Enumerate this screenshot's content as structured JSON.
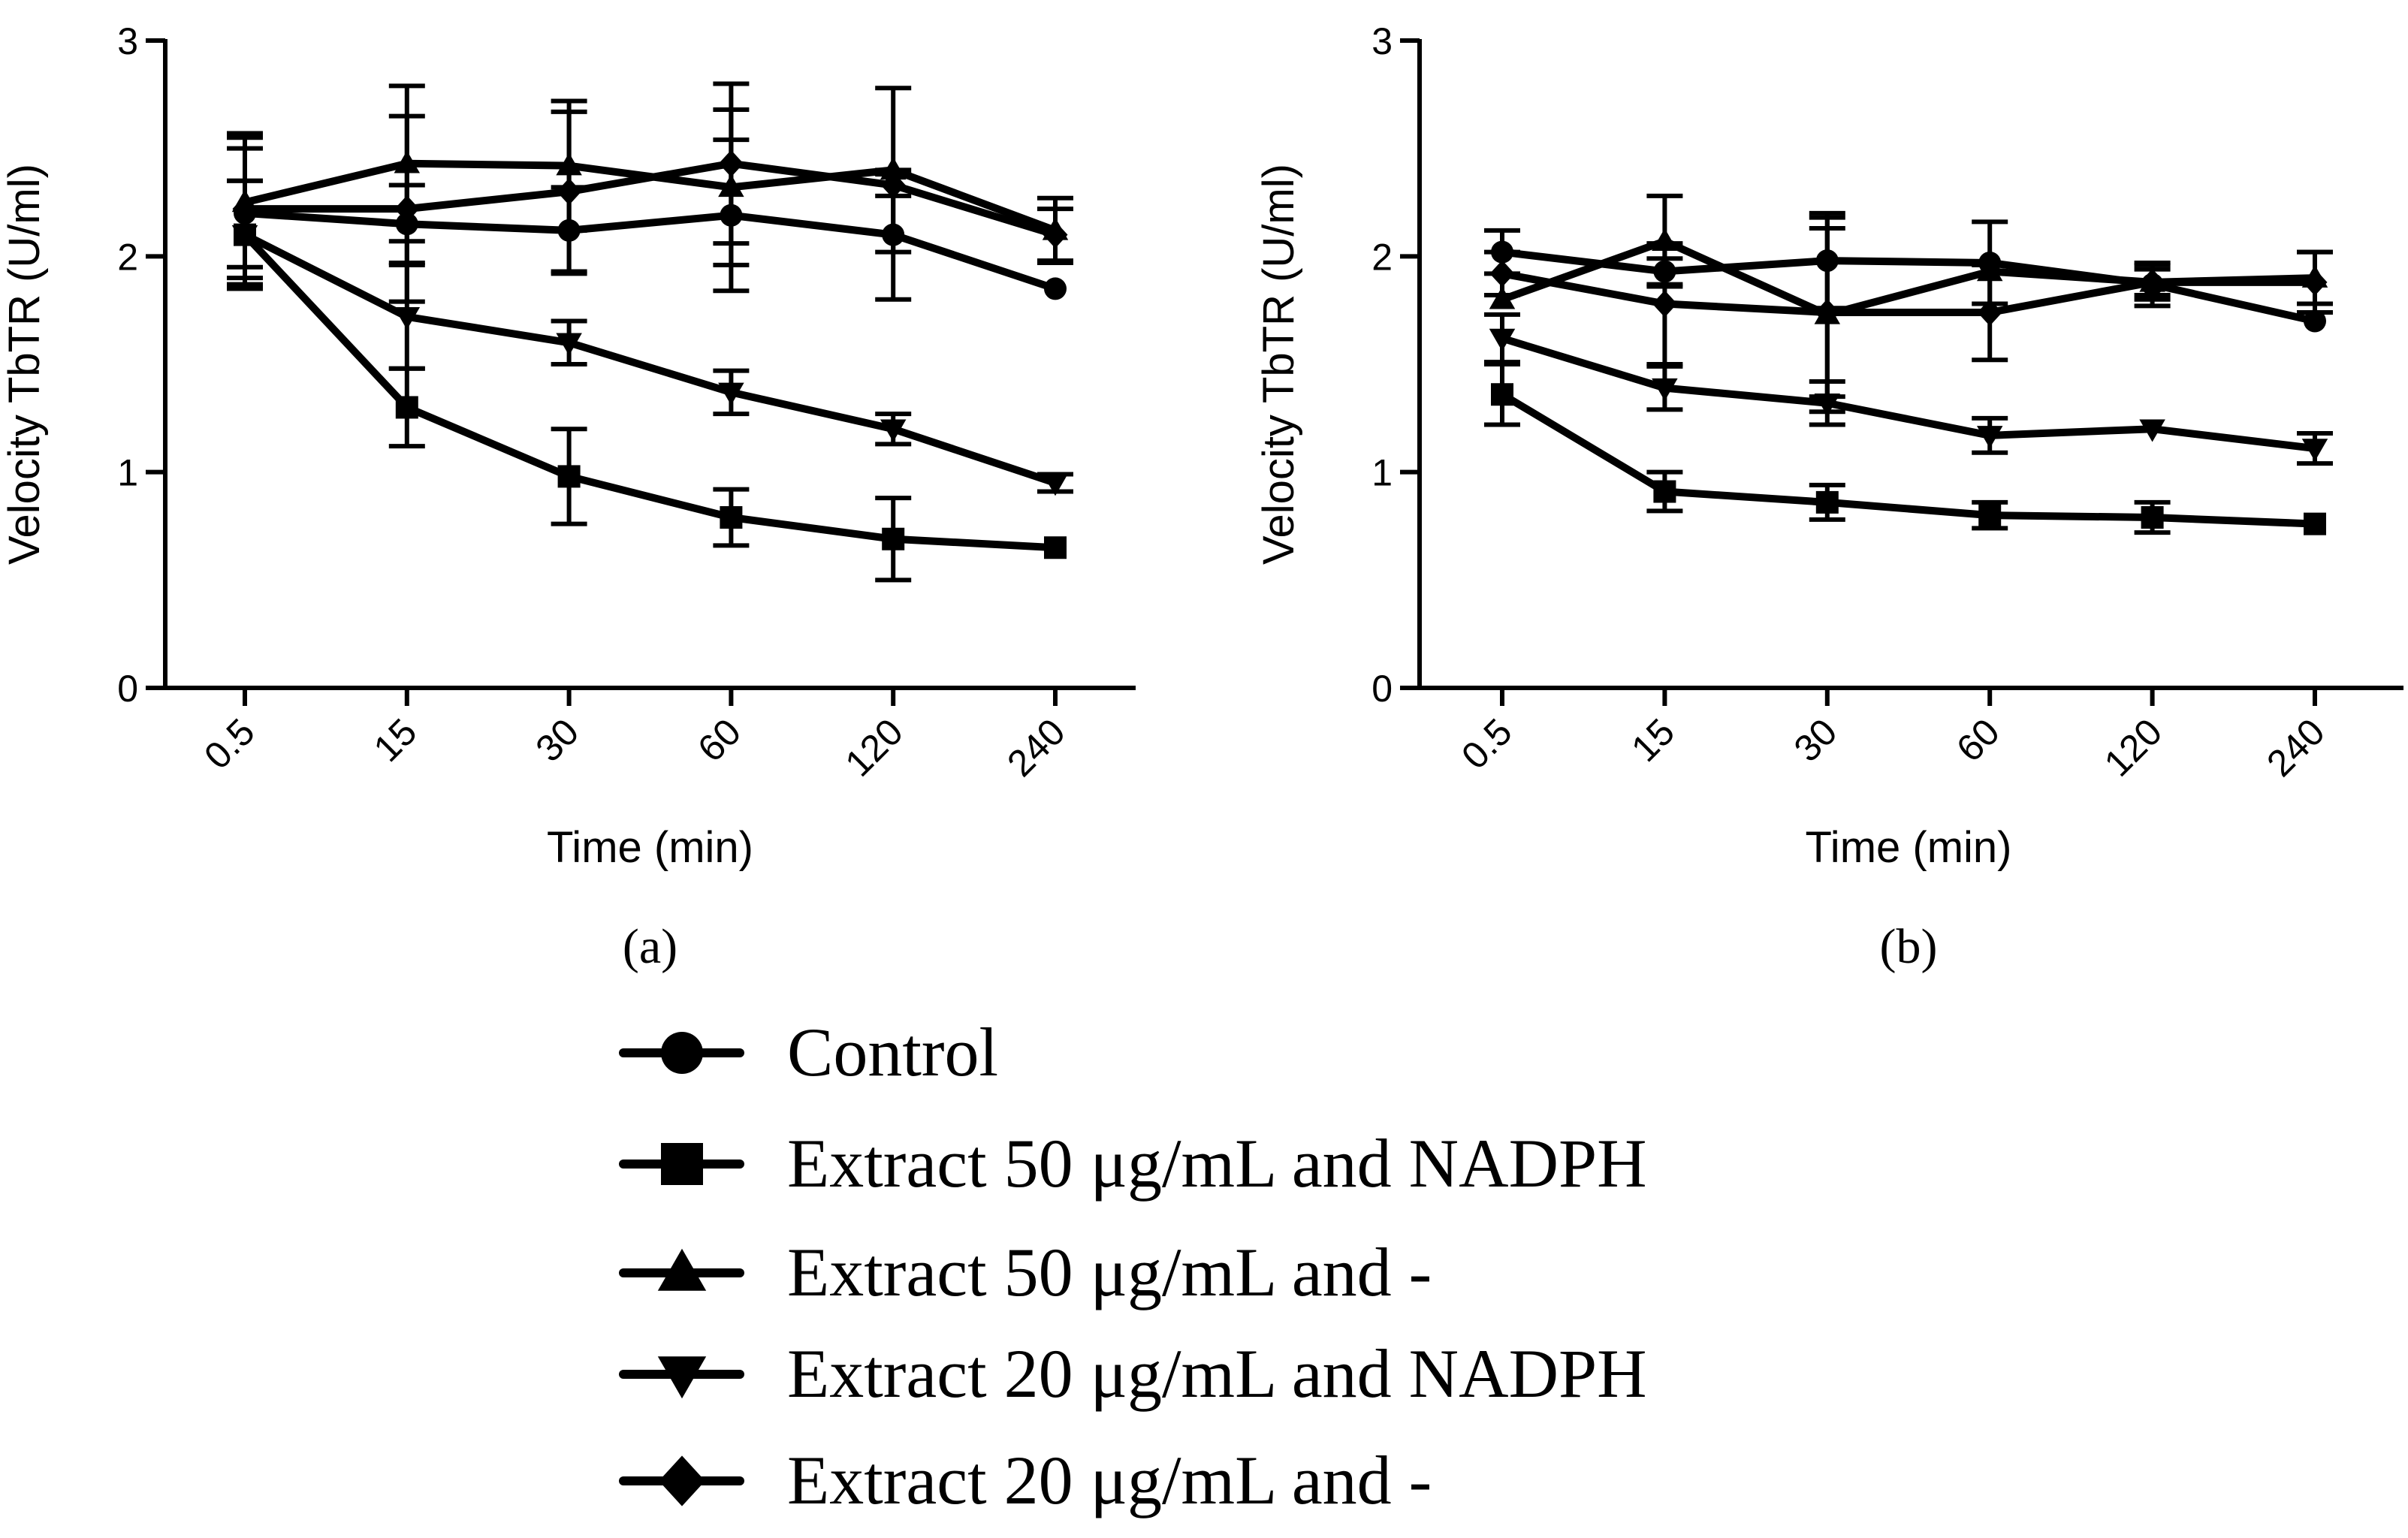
{
  "chart_data": [
    {
      "type": "line",
      "panel_label": "(a)",
      "xlabel": "Time (min)",
      "ylabel": "Velocity TbTR (U/ml)",
      "categories": [
        "0.5",
        "15",
        "30",
        "60",
        "120",
        "240"
      ],
      "ylim": [
        0,
        3
      ],
      "yticks": [
        "0",
        "1",
        "2",
        "3"
      ],
      "grid": false,
      "series": [
        {
          "name": "Control",
          "marker": "circle",
          "values": [
            2.2,
            2.15,
            2.12,
            2.19,
            2.1,
            1.85
          ],
          "errors": [
            0.3,
            0.18,
            0.2,
            0.35,
            0.3,
            0.0
          ]
        },
        {
          "name": "Extract 50 μg/mL and NADPH",
          "marker": "square",
          "values": [
            2.1,
            1.3,
            0.98,
            0.79,
            0.69,
            0.65
          ],
          "errors": [
            0.25,
            0.18,
            0.22,
            0.13,
            0.19,
            0.0
          ]
        },
        {
          "name": "Extract 50 μg/mL and -",
          "marker": "triangle-up",
          "values": [
            2.25,
            2.43,
            2.42,
            2.32,
            2.4,
            2.12
          ],
          "errors": [
            0.3,
            0.36,
            0.3,
            0.36,
            0.38,
            0.15
          ]
        },
        {
          "name": "Extract 20 μg/mL and NADPH",
          "marker": "triangle-down",
          "values": [
            2.1,
            1.72,
            1.6,
            1.37,
            1.2,
            0.95
          ],
          "errors": [
            0.25,
            0.24,
            0.1,
            0.1,
            0.07,
            0.04
          ]
        },
        {
          "name": "Extract 20 μg/mL and -",
          "marker": "diamond",
          "values": [
            2.22,
            2.22,
            2.3,
            2.43,
            2.33,
            2.1
          ],
          "errors": [
            0.35,
            0.43,
            0.37,
            0.37,
            0.05,
            0.12
          ]
        }
      ]
    },
    {
      "type": "line",
      "panel_label": "(b)",
      "xlabel": "Time (min)",
      "ylabel": "Velocity TbTR (U/ml)",
      "categories": [
        "0.5",
        "15",
        "30",
        "60",
        "120",
        "240"
      ],
      "ylim": [
        0,
        3
      ],
      "yticks": [
        "0",
        "1",
        "2",
        "3"
      ],
      "grid": false,
      "series": [
        {
          "name": "Control",
          "marker": "circle",
          "values": [
            2.02,
            1.93,
            1.98,
            1.97,
            1.87,
            1.7
          ],
          "errors": [
            0.1,
            0.06,
            0.22,
            0.19,
            0.1,
            0.0
          ]
        },
        {
          "name": "Extract 50 μg/mL and NADPH",
          "marker": "square",
          "values": [
            1.36,
            0.91,
            0.86,
            0.8,
            0.79,
            0.76
          ],
          "errors": [
            0.14,
            0.09,
            0.08,
            0.06,
            0.07,
            0.0
          ]
        },
        {
          "name": "Extract 50 μg/mL and -",
          "marker": "triangle-up",
          "values": [
            1.8,
            2.07,
            1.73,
            1.93,
            1.88,
            1.9
          ],
          "errors": [
            0.0,
            0.21,
            0.45,
            0.0,
            0.06,
            0.12
          ]
        },
        {
          "name": "Extract 20 μg/mL and NADPH",
          "marker": "triangle-down",
          "values": [
            1.62,
            1.39,
            1.32,
            1.17,
            1.2,
            1.11
          ],
          "errors": [
            0.11,
            0.1,
            0.1,
            0.08,
            0.0,
            0.07
          ]
        },
        {
          "name": "Extract 20 μg/mL and -",
          "marker": "diamond",
          "values": [
            1.92,
            1.78,
            1.74,
            1.74,
            1.88,
            1.88
          ],
          "errors": [
            0.1,
            0.28,
            0.39,
            0.22,
            0.08,
            0.14
          ]
        }
      ]
    }
  ],
  "legend": [
    {
      "label": "Control",
      "marker": "circle"
    },
    {
      "label": "Extract 50 μg/mL and NADPH",
      "marker": "square"
    },
    {
      "label": "Extract 50 μg/mL and -",
      "marker": "triangle-up"
    },
    {
      "label": "Extract 20 μg/mL and NADPH",
      "marker": "triangle-down"
    },
    {
      "label": "Extract 20 μg/mL and -",
      "marker": "diamond"
    }
  ],
  "colors": {
    "ink": "#000000",
    "background": "#ffffff"
  }
}
